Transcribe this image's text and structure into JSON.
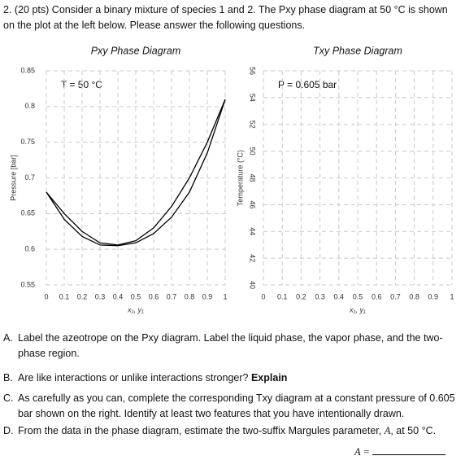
{
  "question": {
    "number": "2.",
    "points": "(20 pts)",
    "text": "Consider a binary mixture of species 1 and 2. The Pxy phase diagram at 50 °C is shown on the plot at the left below. Please answer the following questions."
  },
  "chart_data": [
    {
      "type": "line",
      "title": "Pxy Phase Diagram",
      "annotation": "T = 50 °C",
      "x_label": "x₁, y₁",
      "y_label": "Pressure [bar]",
      "x": [
        0,
        0.1,
        0.2,
        0.3,
        0.4,
        0.5,
        0.6,
        0.7,
        0.8,
        0.9,
        1
      ],
      "series": [
        {
          "color": "#000000",
          "values": [
            0.68,
            0.65,
            0.625,
            0.609,
            0.606,
            0.612,
            0.63,
            0.66,
            0.7,
            0.75,
            0.81
          ]
        },
        {
          "color": "#000000",
          "values": [
            0.68,
            0.642,
            0.618,
            0.606,
            0.605,
            0.609,
            0.622,
            0.645,
            0.68,
            0.735,
            0.81
          ]
        }
      ],
      "xlim": [
        0,
        1
      ],
      "xticks": [
        0,
        0.1,
        0.2,
        0.3,
        0.4,
        0.5,
        0.6,
        0.7,
        0.8,
        0.9,
        1
      ],
      "ylim": [
        0.55,
        0.85
      ],
      "yticks": [
        0.55,
        0.6,
        0.65,
        0.7,
        0.75,
        0.8,
        0.85
      ],
      "grid": true
    },
    {
      "type": "line",
      "title": "Txy Phase Diagram",
      "annotation": "P = 0.605 bar",
      "x_label": "x₁, y₁",
      "y_label": "Temperature (°C)",
      "x": [],
      "series": [],
      "xlim": [
        0,
        1
      ],
      "xticks": [
        0,
        0.1,
        0.2,
        0.3,
        0.4,
        0.5,
        0.6,
        0.7,
        0.8,
        0.9,
        1
      ],
      "ylim": [
        40,
        56
      ],
      "yticks": [
        40,
        42,
        44,
        46,
        48,
        50,
        52,
        54,
        56
      ],
      "grid": true
    }
  ],
  "parts": [
    {
      "label": "A.",
      "text": "Label the azeotrope on the Pxy diagram. Label the liquid phase, the vapor phase, and the two-phase region."
    },
    {
      "label": "B.",
      "text": "Are like interactions or unlike interactions stronger?",
      "bold": "Explain"
    },
    {
      "label": "C.",
      "text": "As carefully as you can, complete the corresponding Txy diagram at a constant pressure of 0.605 bar shown on the right. Identify at least two features that you have intentionally drawn."
    },
    {
      "label": "D.",
      "text": "From the data in the phase diagram, estimate the two-suffix Margules parameter,",
      "symbol": "A",
      "text_after": ", at 50 °C."
    }
  ],
  "answer": {
    "label": "A ="
  }
}
